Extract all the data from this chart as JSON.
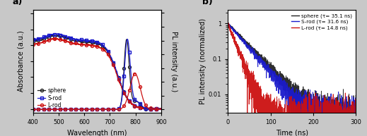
{
  "panel_a": {
    "title": "a)",
    "xlabel": "Wavelength (nm)",
    "ylabel_left": "Absorbance (a.u.)",
    "ylabel_right": "PL intensity (a.u.)",
    "xlim": [
      400,
      900
    ],
    "x_ticks": [
      400,
      500,
      600,
      700,
      800,
      900
    ],
    "colors": {
      "sphere": "#222222",
      "S-rod": "#1a1acc",
      "L-rod": "#cc1111"
    },
    "legend": [
      "sphere",
      "S-rod",
      "L-rod"
    ]
  },
  "panel_b": {
    "title": "b)",
    "xlabel": "Time (ns)",
    "ylabel": "PL intensity (normalized)",
    "xlim": [
      0,
      300
    ],
    "x_ticks": [
      0,
      100,
      200,
      300
    ],
    "colors": {
      "sphere": "#222222",
      "S-rod": "#1a1acc",
      "L-rod": "#cc1111"
    },
    "legend": [
      "sphere (τ= 35.1 ns)",
      "S-rod (τ= 31.6 ns)",
      "L-rod (τ= 14.8 ns)"
    ],
    "tau": {
      "sphere": 35.1,
      "S-rod": 31.6,
      "L-rod": 14.8
    }
  },
  "fig_background": "#c8c8c8"
}
